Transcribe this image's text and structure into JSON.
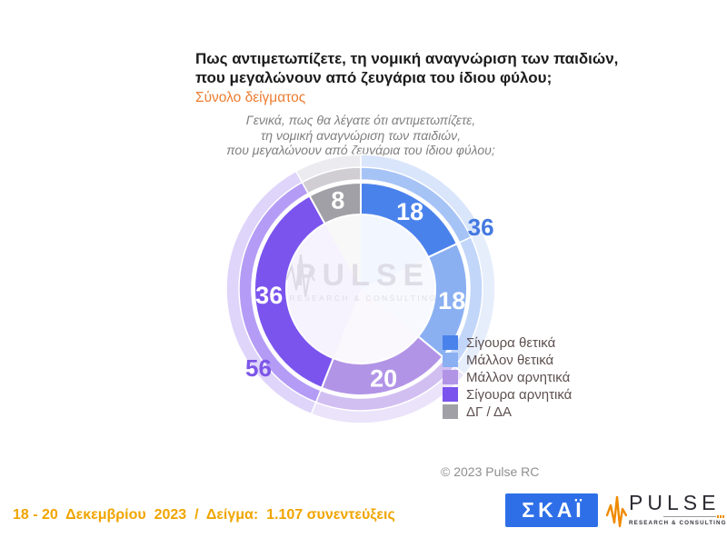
{
  "header": {
    "title_line1": "Πως αντιμετωπίζετε, τη νομική αναγνώριση των παιδιών,",
    "title_line2": "που μεγαλώνουν από ζευγάρια του ίδιου φύλου;",
    "subtitle": "Σύνολο δείγματος",
    "question_line1": "Γενικά, πως θα λέγατε ότι αντιμετωπίζετε,",
    "question_line2": "τη νομική αναγνώριση των παιδιών,",
    "question_line3": "που μεγαλώνουν από ζευγάρια του ίδιου φύλου;"
  },
  "chart_data": {
    "type": "pie",
    "donut": true,
    "start_angle_deg": 0,
    "clockwise": true,
    "total": 100,
    "segments": [
      {
        "label": "Σίγουρα θετικά",
        "value": 18,
        "color": "#4A82EC",
        "halo1": "#A6C3F6",
        "halo2": "#D9E5FB"
      },
      {
        "label": "Μάλλον θετικά",
        "value": 18,
        "color": "#8AB0F2",
        "halo1": "#C2D6F9",
        "halo2": "#E6EEFC"
      },
      {
        "label": "Μάλλον αρνητικά",
        "value": 20,
        "color": "#B294E7",
        "halo1": "#D2BFF2",
        "halo2": "#EBE3FA"
      },
      {
        "label": "Σίγουρα αρνητικά",
        "value": 36,
        "color": "#7B54EE",
        "halo1": "#B49CF6",
        "halo2": "#DFD4FA"
      },
      {
        "label": "ΔΓ / ΔΑ",
        "value": 8,
        "color": "#A1A0A6",
        "halo1": "#D0CED3",
        "halo2": "#ECEBEF"
      }
    ],
    "group_sums": [
      {
        "value": 36,
        "segment_indexes": [
          0,
          1
        ],
        "color": "#4479E0"
      },
      {
        "value": 56,
        "segment_indexes": [
          2,
          3
        ],
        "color": "#7D56E8"
      }
    ],
    "value_label_color": "#FFFFFF",
    "watermark": {
      "line1": "PULSE",
      "line2": "RESEARCH & CONSULTING"
    },
    "legend_position": "right"
  },
  "copyright": "© 2023 Pulse RC",
  "footer": {
    "date_sample": "18 - 20  Δεκεμβρίου  2023  /  Δείγμα:  1.107 συνεντεύξεις",
    "skai_logo_text": "ΣΚΑΪ",
    "pulse_logo_text": "PULSE",
    "pulse_logo_sub": "RESEARCH & CONSULTING"
  },
  "colors": {
    "title": "#1B1B1B",
    "subtitle_orange": "#ED7D31",
    "question_gray": "#7F7F7F",
    "legend_text": "#5E5050",
    "copyright_gray": "#8F8F8F",
    "footer_orange": "#F0A500",
    "skai_blue": "#2E6FE8",
    "pulse_wave_orange": "#F08A00"
  }
}
